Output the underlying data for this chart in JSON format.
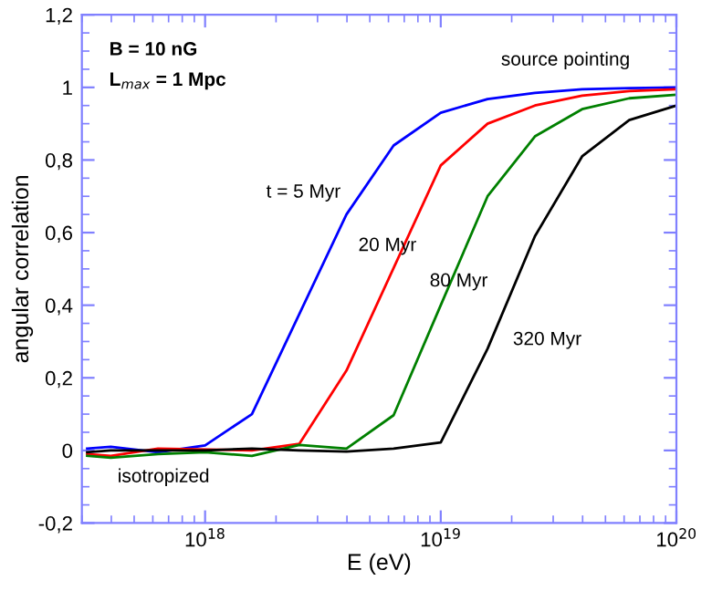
{
  "chart_data": {
    "type": "line",
    "xlabel": "E (eV)",
    "ylabel": "angular correlation",
    "log": "x",
    "x": [
      3.16e+17,
      3.98e+17,
      6.31e+17,
      1e+18,
      1.58e+18,
      2.51e+18,
      3.98e+18,
      6.31e+18,
      1e+19,
      1.58e+19,
      2.51e+19,
      3.98e+19,
      6.31e+19,
      1e+20
    ],
    "series": [
      {
        "color": "#0000ff",
        "values": [
          0.005,
          0.01,
          -0.005,
          0.014,
          0.1,
          null,
          0.65,
          0.84,
          0.93,
          0.968,
          0.985,
          0.995,
          0.998,
          1.0
        ]
      },
      {
        "color": "#ff0000",
        "values": [
          -0.01,
          -0.015,
          0.005,
          null,
          0.0,
          0.018,
          0.22,
          null,
          0.785,
          0.9,
          0.95,
          0.977,
          0.99,
          0.995
        ]
      },
      {
        "color": "#008000",
        "values": [
          -0.015,
          -0.02,
          -0.01,
          -0.005,
          -0.015,
          0.015,
          0.005,
          0.097,
          0.4,
          0.7,
          0.865,
          0.94,
          0.97,
          0.98
        ]
      },
      {
        "color": "#000000",
        "values": [
          -0.005,
          0.0,
          0.0,
          0.0,
          0.005,
          0.0,
          -0.003,
          0.005,
          0.022,
          0.28,
          0.59,
          0.81,
          0.91,
          0.95
        ]
      }
    ],
    "xlim": [
      3e+17,
      1e+20
    ],
    "ylim": [
      -0.2,
      1.2
    ],
    "xticks": [
      {
        "value": 1e+18,
        "label": "10$^{18}$"
      },
      {
        "value": 1e+19,
        "label": "10$^{19}$"
      },
      {
        "value": 1e+20,
        "label": "10$^{20}$"
      }
    ],
    "yticks": [
      {
        "value": -0.2,
        "label": "-0,2"
      },
      0,
      {
        "value": 0.2,
        "label": "0,2"
      },
      {
        "value": 0.4,
        "label": "0,4"
      },
      {
        "value": 0.6,
        "label": "0,6"
      },
      {
        "value": 0.8,
        "label": "0,8"
      },
      1,
      {
        "value": 1.2,
        "label": "1,2"
      }
    ],
    "grid": false,
    "legend": false,
    "marker": "none",
    "line_style": "solid",
    "annotations": [
      "B = 10 nG",
      "L$_{max}$ = 1 Mpc",
      "source pointing",
      "t = 5 Myr",
      "20 Myr",
      "80 Myr",
      "320 Myr",
      "isotropized"
    ]
  }
}
